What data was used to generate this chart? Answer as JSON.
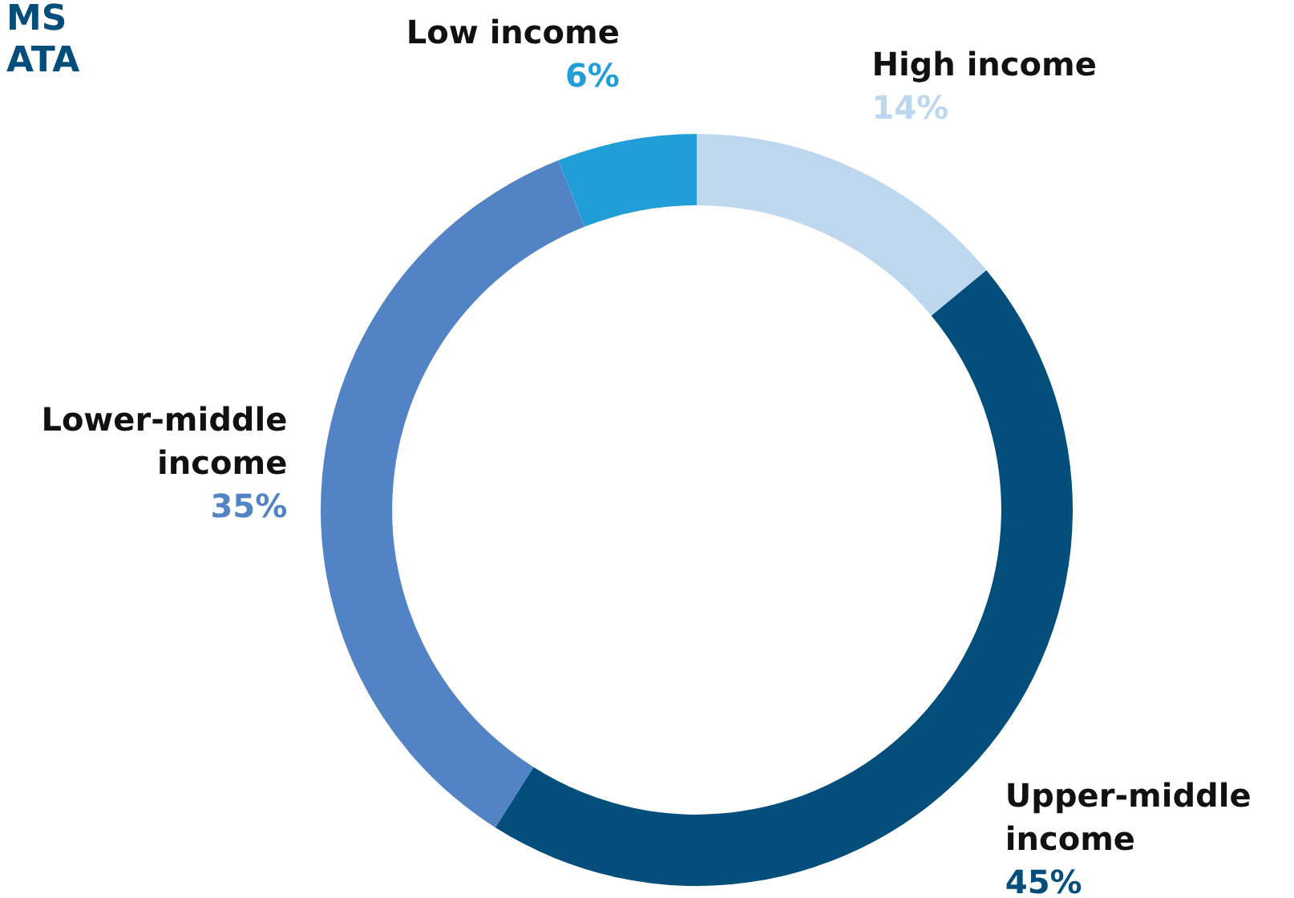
{
  "chart_data": {
    "type": "donut",
    "categories": [
      "High income",
      "Upper-middle income",
      "Lower-middle income",
      "Low income"
    ],
    "values": [
      14,
      45,
      35,
      6
    ],
    "colors": [
      "#bdd7ee",
      "#034e7b",
      "#5183c5",
      "#219ed8"
    ],
    "value_labels": [
      "14%",
      "45%",
      "35%",
      "6%"
    ],
    "legend": false,
    "annotations": [
      "MS",
      "ATA"
    ]
  }
}
